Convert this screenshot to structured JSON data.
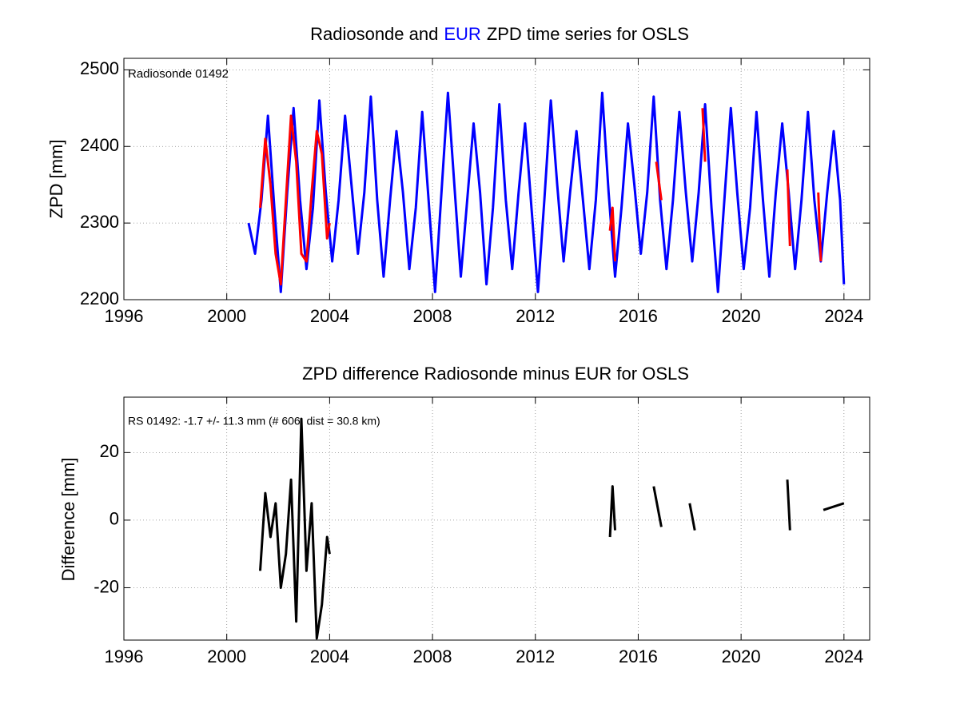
{
  "chart_data": [
    {
      "type": "line",
      "title_start": "Radiosonde and",
      "title_end": "ZPD time series for OSLS",
      "y_label": "ZPD [mm]",
      "xlim": [
        1996,
        2025
      ],
      "ylim": [
        2200,
        2515
      ],
      "xticks": [
        1996,
        2000,
        2004,
        2008,
        2012,
        2016,
        2020,
        2024
      ],
      "yticks": [
        2200,
        2300,
        2400,
        2500
      ],
      "grid": true,
      "series": [
        {
          "name": "Radiosonde 01492",
          "color": "#ff0000",
          "x": [
            2001.3,
            2001.5,
            2001.7,
            2001.9,
            2002.1,
            2002.3,
            2002.5,
            2002.7,
            2002.9,
            2003.1,
            2003.3,
            2003.5,
            2003.7,
            2003.9,
            2004.0,
            2009,
            2014.9,
            2015.0,
            2015.1,
            2016.0,
            2016.7,
            2016.9,
            2017.5,
            2018.5,
            2018.6,
            2020,
            2021.8,
            2021.9,
            2022.5,
            2023.0,
            2023.1
          ],
          "values": [
            2320,
            2410,
            2350,
            2260,
            2220,
            2330,
            2440,
            2380,
            2260,
            2250,
            2340,
            2420,
            2390,
            2280,
            2300,
            null,
            2290,
            2320,
            2250,
            null,
            2380,
            2330,
            null,
            2450,
            2380,
            null,
            2370,
            2270,
            null,
            2340,
            2250
          ]
        },
        {
          "name": "EUR",
          "color": "#0000ff",
          "x": [
            2000.85,
            2001.1,
            2001.35,
            2001.6,
            2001.85,
            2002.1,
            2002.35,
            2002.6,
            2002.85,
            2003.1,
            2003.35,
            2003.6,
            2003.85,
            2004.1,
            2004.35,
            2004.6,
            2004.85,
            2005.1,
            2005.35,
            2005.6,
            2005.85,
            2006.1,
            2006.35,
            2006.6,
            2006.85,
            2007.1,
            2007.35,
            2007.6,
            2007.85,
            2008.1,
            2008.35,
            2008.6,
            2008.85,
            2009.1,
            2009.35,
            2009.6,
            2009.85,
            2010.1,
            2010.35,
            2010.6,
            2010.85,
            2011.1,
            2011.35,
            2011.6,
            2011.85,
            2012.1,
            2012.35,
            2012.6,
            2012.85,
            2013.1,
            2013.35,
            2013.6,
            2013.85,
            2014.1,
            2014.35,
            2014.6,
            2014.85,
            2015.1,
            2015.35,
            2015.6,
            2015.85,
            2016.1,
            2016.35,
            2016.6,
            2016.85,
            2017.1,
            2017.35,
            2017.6,
            2017.85,
            2018.1,
            2018.35,
            2018.6,
            2018.85,
            2019.1,
            2019.35,
            2019.6,
            2019.85,
            2020.1,
            2020.35,
            2020.6,
            2020.85,
            2021.1,
            2021.35,
            2021.6,
            2021.85,
            2022.1,
            2022.35,
            2022.6,
            2022.85,
            2023.1,
            2023.35,
            2023.6,
            2023.85,
            2024.0
          ],
          "values": [
            2300,
            2260,
            2330,
            2440,
            2320,
            2210,
            2340,
            2450,
            2330,
            2240,
            2320,
            2460,
            2340,
            2250,
            2330,
            2440,
            2350,
            2260,
            2340,
            2465,
            2330,
            2230,
            2330,
            2420,
            2340,
            2240,
            2320,
            2445,
            2330,
            2210,
            2340,
            2470,
            2350,
            2230,
            2330,
            2430,
            2340,
            2220,
            2320,
            2455,
            2330,
            2240,
            2340,
            2430,
            2320,
            2210,
            2330,
            2460,
            2350,
            2250,
            2340,
            2420,
            2330,
            2240,
            2330,
            2470,
            2340,
            2230,
            2320,
            2430,
            2350,
            2260,
            2340,
            2465,
            2330,
            2240,
            2330,
            2445,
            2340,
            2250,
            2340,
            2455,
            2320,
            2210,
            2330,
            2450,
            2340,
            2240,
            2320,
            2445,
            2330,
            2230,
            2340,
            2430,
            2340,
            2240,
            2330,
            2445,
            2330,
            2250,
            2340,
            2420,
            2330,
            2220
          ]
        }
      ]
    },
    {
      "type": "line",
      "title": "ZPD difference Radiosonde minus EUR for OSLS",
      "annotation": "RS 01492: -1.7 +/- 11.3 mm (# 606, dist =  30.8 km)",
      "y_label": "Difference [mm]",
      "xlim": [
        1996,
        2025
      ],
      "ylim": [
        -35.5,
        36.4
      ],
      "xticks": [
        1996,
        2000,
        2004,
        2008,
        2012,
        2016,
        2020,
        2024
      ],
      "yticks": [
        -20,
        0,
        20
      ],
      "grid": true,
      "series": [
        {
          "color": "#000000",
          "x": [
            2001.3,
            2001.5,
            2001.7,
            2001.9,
            2002.1,
            2002.3,
            2002.5,
            2002.7,
            2002.9,
            2003.1,
            2003.3,
            2003.5,
            2003.7,
            2003.9,
            2004.0,
            2009,
            2014.9,
            2015.0,
            2015.1,
            2016.0,
            2016.6,
            2016.9,
            2017.5,
            2018.0,
            2018.2,
            2020,
            2021.8,
            2021.9,
            2022.9,
            2023.2,
            2024.0
          ],
          "values": [
            -15,
            8,
            -5,
            5,
            -20,
            -10,
            12,
            -30,
            30,
            -15,
            5,
            -35,
            -25,
            -5,
            -10,
            null,
            -5,
            10,
            -3,
            null,
            10,
            -2,
            null,
            5,
            -3,
            null,
            12,
            -3,
            null,
            3,
            5
          ]
        }
      ]
    }
  ]
}
